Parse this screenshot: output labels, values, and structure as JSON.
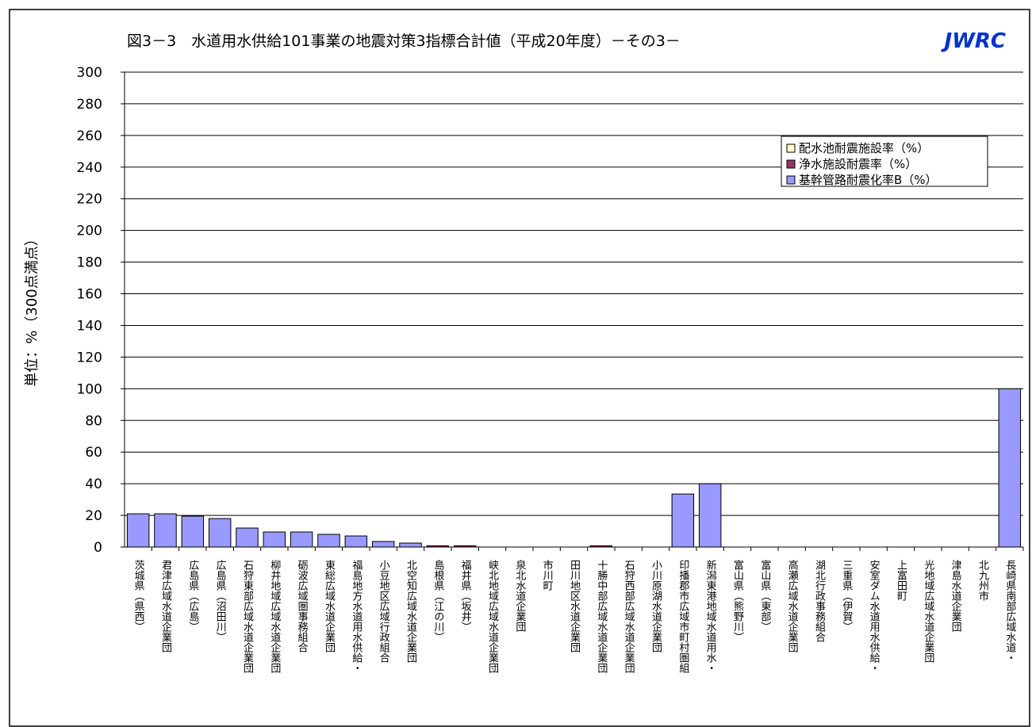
{
  "chart_data": {
    "type": "stacked-bar",
    "title": "図3－3　水道用水供給101事業の地震対策3指標合計値（平成20年度）－その3－",
    "logo": "JWRC",
    "y_label": "単位：%（300点満点）",
    "categories": [
      "茨城県（県西）",
      "君津広域水道企業団",
      "広島県（広島）",
      "広島県（沼田川）",
      "石狩東部広域水道企業団",
      "柳井地域広域水道企業団",
      "砺波広域圏事務組合",
      "東総広域水道企業団",
      "福島地方水道用水供給・",
      "小豆地区広域行政組合",
      "北空知広域水道企業団",
      "島根県（江の川）",
      "福井県（坂井）",
      "峡北地域広域水道企業団",
      "泉北水道企業団",
      "市川町",
      "田川地区水道企業団",
      "十勝中部広域水道企業団",
      "石狩西部広域水道企業団",
      "小川原湖水道企業団",
      "印播郡市広域市町村圏組",
      "新潟東港地域水道用水・",
      "富山県（熊野川）",
      "富山県（東部）",
      "高瀬広域水道企業団",
      "湖北行政事務組合",
      "三重県（伊賀）",
      "安室ダム水道用水供給・",
      "上富田町",
      "光地域広域水道企業団",
      "津島水道企業団",
      "北九州市",
      "長崎県南部広域水道・"
    ],
    "series": [
      {
        "name": "基幹管路耐震化率B（%）",
        "color": "#9999ff",
        "values": [
          21,
          21,
          19.5,
          18,
          12,
          9.5,
          9.5,
          8,
          7,
          3.5,
          2.5,
          0,
          0,
          0,
          0,
          0,
          0,
          0,
          0,
          0,
          33.5,
          40,
          0,
          0,
          0,
          0,
          0,
          0,
          0,
          0,
          0,
          0,
          100
        ]
      },
      {
        "name": "浄水施設耐震率（%）",
        "color": "#993366",
        "values": [
          0,
          0,
          0,
          0,
          0,
          0,
          0,
          0,
          0,
          0,
          0,
          0.8,
          0.8,
          0,
          0,
          0,
          0,
          0.8,
          0,
          0,
          0,
          0,
          0,
          0,
          0,
          0,
          0,
          0,
          0,
          0,
          0,
          0,
          0
        ]
      },
      {
        "name": "配水池耐震施設率（%）",
        "color": "#ffffcc",
        "values": [
          0,
          0,
          0,
          0,
          0,
          0,
          0,
          0,
          0,
          0,
          0,
          0,
          0,
          0,
          0,
          0,
          0,
          0,
          0,
          0,
          0,
          0,
          0,
          0,
          0,
          0,
          0,
          0,
          0,
          0,
          0,
          0,
          0
        ]
      }
    ],
    "ylim": [
      0,
      300
    ],
    "yticks": [
      0,
      20,
      40,
      60,
      80,
      100,
      120,
      140,
      160,
      180,
      200,
      220,
      240,
      260,
      280,
      300
    ],
    "grid": true
  }
}
